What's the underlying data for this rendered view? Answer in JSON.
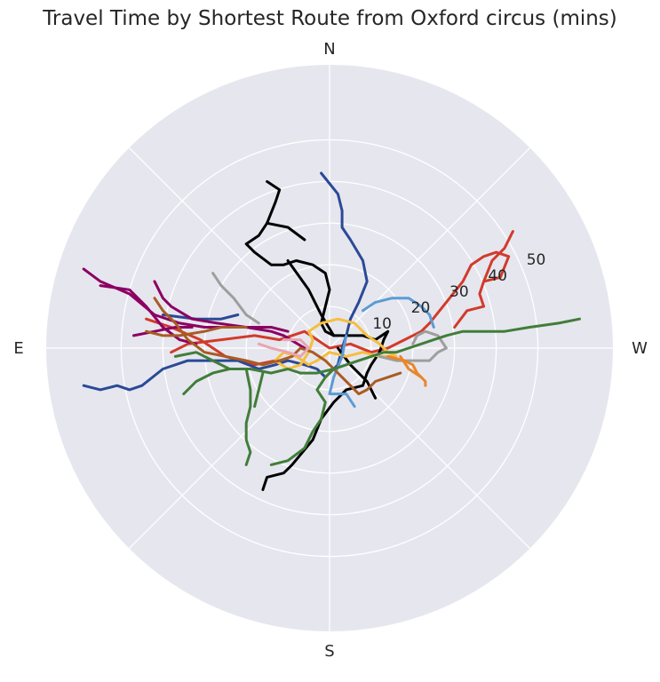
{
  "chart_data": {
    "type": "line",
    "projection": "polar",
    "title": "Travel Time by Shortest Route from Oxford circus (mins)",
    "directions": [
      "N",
      "W",
      "S",
      "E"
    ],
    "r_ticks": [
      "10",
      "20",
      "30",
      "40",
      "50"
    ],
    "r_tick_values": [
      10,
      20,
      30,
      40,
      50
    ],
    "rmax": 68,
    "grid": true,
    "background": "#e6e6ef",
    "grid_color": "#ffffff",
    "series": [
      {
        "color": "#d13b2b",
        "points": [
          [
            -38,
            -1
          ],
          [
            -34,
            1
          ],
          [
            -26,
            2
          ],
          [
            -18,
            3
          ],
          [
            -12,
            2
          ],
          [
            -6,
            4
          ],
          [
            0,
            0
          ],
          [
            5,
            1
          ],
          [
            10,
            -1
          ],
          [
            14,
            0
          ],
          [
            18,
            2
          ],
          [
            22,
            4
          ],
          [
            24,
            6
          ],
          [
            28,
            11
          ],
          [
            32,
            16
          ],
          [
            34,
            20
          ],
          [
            37,
            22
          ],
          [
            40,
            23
          ],
          [
            43,
            22
          ],
          [
            41,
            17
          ],
          [
            37,
            16
          ],
          [
            36,
            13
          ],
          [
            37,
            10
          ],
          [
            33,
            9
          ],
          [
            30,
            5
          ]
        ]
      },
      {
        "color": "#d13b2b",
        "points": [
          [
            37,
            16
          ],
          [
            39,
            21
          ],
          [
            42,
            24
          ],
          [
            44,
            28
          ]
        ]
      },
      {
        "color": "#d13b2b",
        "points": [
          [
            -44,
            7
          ],
          [
            -38,
            5
          ],
          [
            -31,
            2
          ],
          [
            -25,
            -2
          ],
          [
            -18,
            -4
          ],
          [
            -13,
            -3
          ]
        ]
      },
      {
        "color": "#2a4a96",
        "points": [
          [
            -59,
            -9
          ],
          [
            -55,
            -10
          ],
          [
            -51,
            -9
          ],
          [
            -48,
            -10
          ],
          [
            -45,
            -9
          ],
          [
            -40,
            -5
          ],
          [
            -34,
            -3
          ],
          [
            -28,
            -3
          ],
          [
            -22,
            -3
          ],
          [
            -17,
            -5
          ],
          [
            -13,
            -4
          ],
          [
            -10,
            -3
          ],
          [
            -6,
            -4
          ],
          [
            -3,
            -5
          ],
          [
            -1,
            -7
          ],
          [
            2,
            -4
          ],
          [
            3,
            0
          ],
          [
            4,
            3
          ],
          [
            5,
            7
          ],
          [
            7,
            11
          ],
          [
            9,
            16
          ],
          [
            8,
            21
          ],
          [
            5,
            26
          ],
          [
            3,
            29
          ],
          [
            3,
            33
          ],
          [
            2,
            37
          ],
          [
            -2,
            42
          ]
        ]
      },
      {
        "color": "#2a4a96",
        "points": [
          [
            -40,
            8
          ],
          [
            -32,
            7
          ],
          [
            -26,
            7
          ],
          [
            -22,
            8
          ]
        ]
      },
      {
        "color": "#000000",
        "points": [
          [
            -16,
            -34
          ],
          [
            -15,
            -31
          ],
          [
            -11,
            -30
          ],
          [
            -9,
            -28
          ],
          [
            -4,
            -22
          ],
          [
            -2,
            -17
          ],
          [
            1,
            -13
          ],
          [
            4,
            -10
          ],
          [
            8,
            -9
          ],
          [
            9,
            -6
          ],
          [
            10,
            -4
          ],
          [
            12,
            -1
          ],
          [
            13,
            2
          ],
          [
            14,
            4
          ],
          [
            11,
            2
          ],
          [
            8,
            3
          ],
          [
            5,
            3
          ],
          [
            1,
            3
          ],
          [
            -1,
            4
          ],
          [
            -2,
            6
          ],
          [
            -1,
            10
          ],
          [
            0,
            14
          ],
          [
            -1,
            18
          ],
          [
            -4,
            20
          ],
          [
            -8,
            21
          ],
          [
            -11,
            20
          ],
          [
            -14,
            20
          ],
          [
            -18,
            23
          ],
          [
            -20,
            25
          ],
          [
            -17,
            27
          ],
          [
            -15,
            30
          ],
          [
            -13,
            35
          ],
          [
            -12,
            38
          ],
          [
            -15,
            40
          ]
        ]
      },
      {
        "color": "#000000",
        "points": [
          [
            1,
            3
          ],
          [
            -2,
            8
          ],
          [
            -5,
            14
          ],
          [
            -10,
            21
          ]
        ]
      },
      {
        "color": "#000000",
        "points": [
          [
            -6,
            26
          ],
          [
            -10,
            29
          ],
          [
            -15,
            30
          ]
        ]
      },
      {
        "color": "#000000",
        "points": [
          [
            2,
            0
          ],
          [
            5,
            -4
          ],
          [
            9,
            -8
          ],
          [
            11,
            -12
          ]
        ]
      },
      {
        "color": "#f5be3d",
        "points": [
          [
            -5,
            4
          ],
          [
            -2,
            6
          ],
          [
            2,
            7
          ],
          [
            6,
            6
          ],
          [
            9,
            3
          ],
          [
            12,
            1
          ],
          [
            14,
            -1
          ],
          [
            16,
            -2
          ],
          [
            12,
            -2
          ],
          [
            8,
            -1
          ],
          [
            4,
            -2
          ],
          [
            0,
            -1
          ],
          [
            -3,
            -3
          ],
          [
            -5,
            -4
          ],
          [
            -8,
            -2
          ],
          [
            -11,
            -1
          ],
          [
            -13,
            -3
          ],
          [
            -10,
            -5
          ],
          [
            -7,
            -4
          ],
          [
            -5,
            -1
          ],
          [
            -4,
            2
          ],
          [
            -5,
            4
          ]
        ]
      },
      {
        "color": "#5c9bd3",
        "points": [
          [
            8,
            9
          ],
          [
            11,
            11
          ],
          [
            15,
            12
          ],
          [
            19,
            12
          ],
          [
            22,
            10
          ],
          [
            24,
            8
          ],
          [
            25,
            5
          ]
        ]
      },
      {
        "color": "#5c9bd3",
        "points": [
          [
            4,
            3
          ],
          [
            3,
            -2
          ],
          [
            1,
            -7
          ],
          [
            0,
            -11
          ],
          [
            4,
            -11
          ],
          [
            6,
            -14
          ]
        ]
      },
      {
        "color": "#8b0063",
        "points": [
          [
            -59,
            19
          ],
          [
            -55,
            16
          ],
          [
            -48,
            13
          ],
          [
            -42,
            8
          ],
          [
            -36,
            6
          ],
          [
            -30,
            5
          ],
          [
            -25,
            5
          ],
          [
            -20,
            5
          ],
          [
            -14,
            5
          ],
          [
            -10,
            4
          ]
        ]
      },
      {
        "color": "#8b0063",
        "points": [
          [
            -55,
            15
          ],
          [
            -48,
            14
          ],
          [
            -44,
            10
          ],
          [
            -40,
            5
          ],
          [
            -36,
            2
          ],
          [
            -32,
            1
          ]
        ]
      },
      {
        "color": "#8b0063",
        "points": [
          [
            -42,
            16
          ],
          [
            -40,
            12
          ],
          [
            -38,
            10
          ],
          [
            -33,
            7
          ],
          [
            -27,
            6
          ],
          [
            -20,
            5
          ],
          [
            -14,
            4
          ],
          [
            -11,
            3
          ],
          [
            -6,
            0
          ]
        ]
      },
      {
        "color": "#8b0063",
        "points": [
          [
            -47,
            3
          ],
          [
            -42,
            4
          ],
          [
            -37,
            5
          ],
          [
            -33,
            5
          ]
        ]
      },
      {
        "color": "#a85c23",
        "points": [
          [
            -42,
            12
          ],
          [
            -40,
            9
          ],
          [
            -37,
            6
          ],
          [
            -34,
            2
          ],
          [
            -30,
            -1
          ],
          [
            -25,
            -2
          ],
          [
            -20,
            -3
          ],
          [
            -16,
            -4
          ],
          [
            -12,
            -3
          ],
          [
            -9,
            -2
          ],
          [
            -7,
            0
          ],
          [
            -4,
            -1
          ],
          [
            -1,
            -3
          ],
          [
            2,
            -6
          ],
          [
            5,
            -9
          ],
          [
            7,
            -11
          ],
          [
            9,
            -10
          ],
          [
            11,
            -8
          ],
          [
            14,
            -7
          ],
          [
            17,
            -6
          ]
        ]
      },
      {
        "color": "#a85c23",
        "points": [
          [
            -44,
            4
          ],
          [
            -40,
            3
          ],
          [
            -36,
            3
          ],
          [
            -30,
            4
          ],
          [
            -26,
            5
          ],
          [
            -20,
            5
          ]
        ]
      },
      {
        "color": "#9e9e9e",
        "points": [
          [
            -28,
            18
          ],
          [
            -26,
            15
          ],
          [
            -23,
            12
          ],
          [
            -20,
            8
          ],
          [
            -17,
            6
          ]
        ]
      },
      {
        "color": "#9e9e9e",
        "points": [
          [
            12,
            -2
          ],
          [
            16,
            -3
          ],
          [
            20,
            -3
          ],
          [
            24,
            -3
          ],
          [
            26,
            -1
          ],
          [
            28,
            0
          ],
          [
            26,
            3
          ],
          [
            23,
            4
          ],
          [
            21,
            3
          ],
          [
            20,
            1
          ]
        ]
      },
      {
        "color": "#e8a5b0",
        "points": [
          [
            -17,
            1
          ],
          [
            -14,
            0
          ],
          [
            -10,
            -1
          ],
          [
            -7,
            -2
          ],
          [
            -5,
            0
          ],
          [
            -7,
            2
          ],
          [
            -11,
            2
          ]
        ]
      },
      {
        "color": "#e8862a",
        "points": [
          [
            14,
            -2
          ],
          [
            18,
            -3
          ],
          [
            20,
            -4
          ],
          [
            21,
            -6
          ],
          [
            23,
            -8
          ],
          [
            23,
            -9
          ]
        ]
      },
      {
        "color": "#e8862a",
        "points": [
          [
            17,
            -2
          ],
          [
            19,
            -5
          ],
          [
            22,
            -7
          ]
        ]
      },
      {
        "color": "#417d38",
        "points": [
          [
            -35,
            -11
          ],
          [
            -32,
            -8
          ],
          [
            -28,
            -6
          ],
          [
            -24,
            -5
          ],
          [
            -19,
            -5
          ],
          [
            -14,
            -6
          ],
          [
            -10,
            -5
          ],
          [
            -7,
            -6
          ],
          [
            -3,
            -6
          ],
          [
            1,
            -5
          ],
          [
            4,
            -4
          ],
          [
            7,
            -3
          ],
          [
            10,
            -2
          ],
          [
            13,
            -1
          ],
          [
            16,
            -1
          ],
          [
            19,
            0
          ],
          [
            22,
            1
          ],
          [
            25,
            2
          ],
          [
            28,
            3
          ],
          [
            32,
            4
          ],
          [
            37,
            4
          ],
          [
            42,
            4
          ],
          [
            48,
            5
          ],
          [
            55,
            6
          ],
          [
            60,
            7
          ]
        ]
      },
      {
        "color": "#417d38",
        "points": [
          [
            -20,
            -5
          ],
          [
            -19,
            -10
          ],
          [
            -19,
            -14
          ],
          [
            -20,
            -18
          ],
          [
            -20,
            -22
          ],
          [
            -19,
            -25
          ],
          [
            -20,
            -28
          ]
        ]
      },
      {
        "color": "#417d38",
        "points": [
          [
            -16,
            -6
          ],
          [
            -17,
            -10
          ],
          [
            -18,
            -14
          ]
        ]
      },
      {
        "color": "#417d38",
        "points": [
          [
            -24,
            -5
          ],
          [
            -28,
            -3
          ],
          [
            -32,
            -1
          ],
          [
            -37,
            -2
          ]
        ]
      },
      {
        "color": "#417d38",
        "points": [
          [
            1,
            -5
          ],
          [
            -1,
            -7
          ],
          [
            -3,
            -10
          ],
          [
            -1,
            -13
          ],
          [
            -2,
            -17
          ],
          [
            -4,
            -20
          ],
          [
            -6,
            -24
          ],
          [
            -10,
            -27
          ],
          [
            -14,
            -28
          ]
        ]
      }
    ]
  }
}
